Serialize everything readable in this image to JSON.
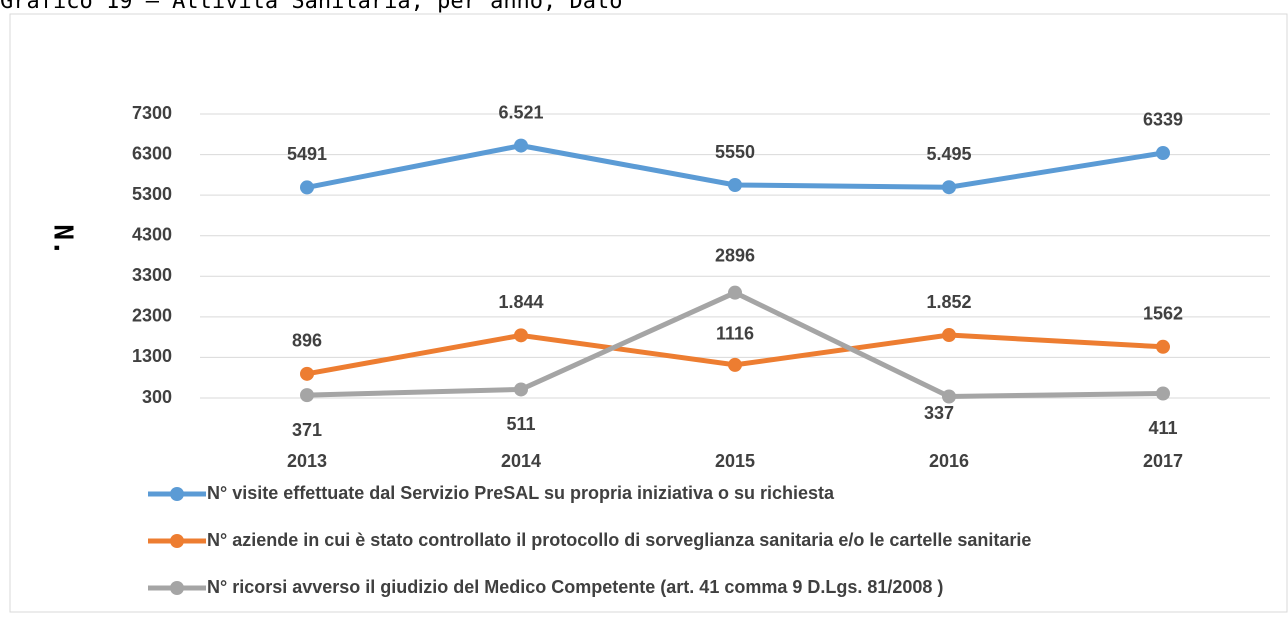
{
  "chart_data": {
    "type": "line",
    "title": "Grafico 19 – Attività Sanitaria, per anno, Dato",
    "y_label": "N.",
    "categories": [
      "2013",
      "2014",
      "2015",
      "2016",
      "2017"
    ],
    "series": [
      {
        "name": "N° visite effettuate dal Servizio PreSAL su propria iniziativa o su richiesta",
        "color": "#5b9bd5",
        "values": [
          5491,
          6521,
          5550,
          5495,
          6339
        ],
        "value_labels": [
          "5491",
          "6.521",
          "5550",
          "5.495",
          "6339"
        ]
      },
      {
        "name": "N° aziende in cui è stato controllato il protocollo di sorveglianza sanitaria e/o le cartelle sanitarie",
        "color": "#ed7d31",
        "values": [
          896,
          1844,
          1116,
          1852,
          1562
        ],
        "value_labels": [
          "896",
          "1.844",
          "1116",
          "1.852",
          "1562"
        ]
      },
      {
        "name": "N° ricorsi avverso il giudizio del Medico Competente (art. 41 comma 9 D.Lgs. 81/2008 )",
        "color": "#a5a5a5",
        "values": [
          371,
          511,
          2896,
          337,
          411
        ]
      }
    ],
    "ylim": [
      300,
      7300
    ],
    "yticks": [
      300,
      1300,
      2300,
      3300,
      4300,
      5300,
      6300,
      7300
    ],
    "grid": true
  }
}
